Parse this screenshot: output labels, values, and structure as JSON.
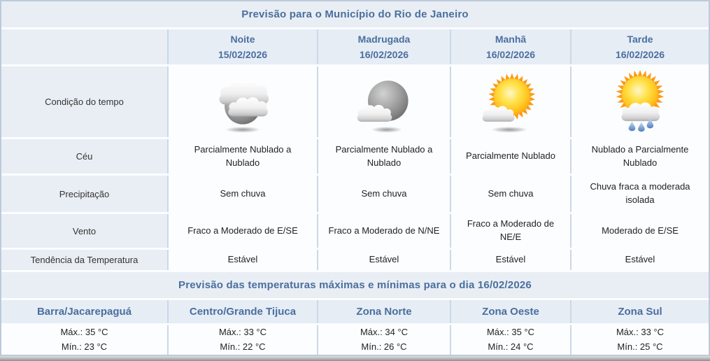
{
  "header": {
    "title": "Previsão para o Município do Rio de Janeiro"
  },
  "forecast": {
    "columns": [
      {
        "period": "Noite",
        "date": "15/02/2026",
        "icon": "moon-clouds-icon"
      },
      {
        "period": "Madrugada",
        "date": "16/02/2026",
        "icon": "moon-cloud-icon"
      },
      {
        "period": "Manhã",
        "date": "16/02/2026",
        "icon": "sun-cloud-icon"
      },
      {
        "period": "Tarde",
        "date": "16/02/2026",
        "icon": "sun-cloud-rain-icon"
      }
    ],
    "row_labels": {
      "condition": "Condição do tempo",
      "sky": "Céu",
      "precipitation": "Precipitação",
      "wind": "Vento",
      "temperature_trend": "Tendência da Temperatura"
    },
    "sky": [
      "Parcialmente Nublado a Nublado",
      "Parcialmente Nublado a Nublado",
      "Parcialmente Nublado",
      "Nublado a Parcialmente Nublado"
    ],
    "precipitation": [
      "Sem chuva",
      "Sem chuva",
      "Sem chuva",
      "Chuva fraca a moderada isolada"
    ],
    "wind": [
      "Fraco a Moderado de E/SE",
      "Fraco a Moderado de N/NE",
      "Fraco a Moderado de NE/E",
      "Moderado de E/SE"
    ],
    "temperature_trend": [
      "Estável",
      "Estável",
      "Estável",
      "Estável"
    ]
  },
  "temperatures": {
    "title": "Previsão das temperaturas máximas e mínimas para o dia 16/02/2026",
    "zones": [
      {
        "name": "Barra/Jacarepaguá",
        "max": "Máx.: 35 °C",
        "min": "Mín.: 23 °C"
      },
      {
        "name": "Centro/Grande Tijuca",
        "max": "Máx.: 33 °C",
        "min": "Mín.: 22 °C"
      },
      {
        "name": "Zona Norte",
        "max": "Máx.: 34 °C",
        "min": "Mín.: 26 °C"
      },
      {
        "name": "Zona Oeste",
        "max": "Máx.: 35 °C",
        "min": "Mín.: 24 °C"
      },
      {
        "name": "Zona Sul",
        "max": "Máx.: 33 °C",
        "min": "Mín.: 25 °C"
      }
    ]
  },
  "colors": {
    "heading_blue": "#4a6f9f",
    "header_cell_bg": "#e6edf5",
    "data_cell_bg": "#fcfdff",
    "grid_line": "#ccd8e6",
    "outer_border": "#bccadb",
    "sun_orange": "#fb9c15",
    "rain_drop_blue": "#4f7cbe"
  }
}
